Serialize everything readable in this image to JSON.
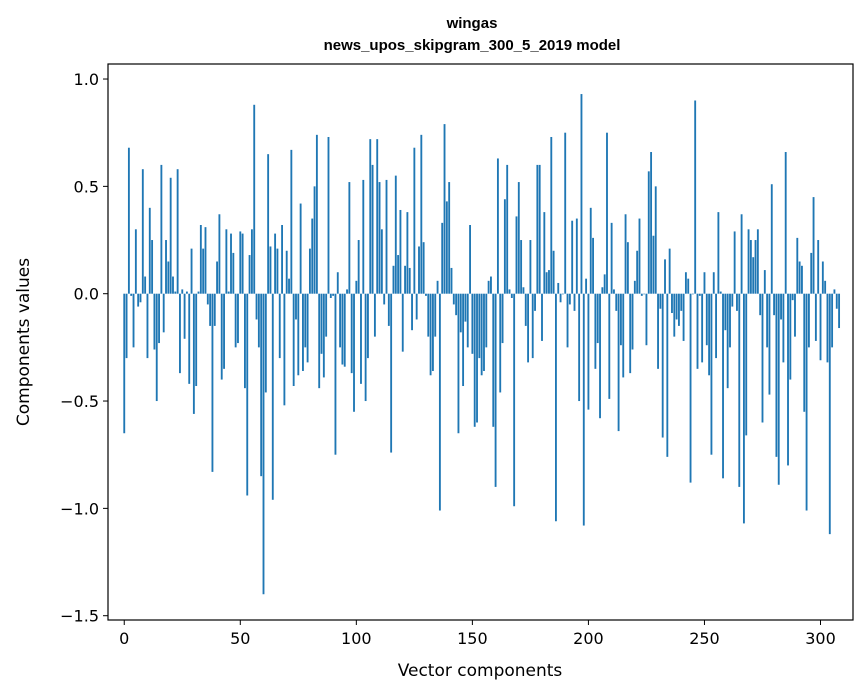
{
  "chart_data": {
    "type": "bar",
    "title": "wingas",
    "subtitle": "news_upos_skipgram_300_5_2019 model",
    "xlabel": "Vector components",
    "ylabel": "Components values",
    "xlim": [
      -7,
      314
    ],
    "ylim": [
      -1.52,
      1.07
    ],
    "x_ticks": [
      0,
      50,
      100,
      150,
      200,
      250,
      300
    ],
    "y_ticks": [
      1.0,
      0.5,
      0.0,
      -0.5,
      -1.0,
      -1.5
    ],
    "y_tick_labels": [
      "1.0",
      "0.5",
      "0.0",
      "−0.5",
      "−1.0",
      "−1.5"
    ],
    "bar_color": "#1f77b4",
    "values": [
      -0.65,
      -0.3,
      0.68,
      -0.01,
      -0.25,
      0.3,
      -0.06,
      -0.04,
      0.58,
      0.08,
      -0.3,
      0.4,
      0.25,
      -0.26,
      -0.5,
      -0.23,
      0.6,
      -0.18,
      0.25,
      0.15,
      0.54,
      0.08,
      0.01,
      0.58,
      -0.37,
      0.02,
      -0.21,
      0.01,
      -0.42,
      0.21,
      -0.56,
      -0.43,
      0.01,
      0.32,
      0.21,
      0.31,
      -0.05,
      -0.15,
      -0.83,
      -0.15,
      0.15,
      0.37,
      -0.4,
      -0.35,
      0.3,
      0.01,
      0.28,
      0.19,
      -0.25,
      -0.23,
      0.29,
      0.28,
      -0.44,
      -0.94,
      0.18,
      0.3,
      0.88,
      -0.12,
      -0.25,
      -0.85,
      -1.4,
      -0.46,
      0.65,
      0.22,
      -0.96,
      0.28,
      0.21,
      -0.3,
      0.32,
      -0.52,
      0.2,
      0.07,
      0.67,
      -0.43,
      -0.12,
      -0.38,
      0.42,
      -0.36,
      -0.25,
      -0.32,
      0.21,
      0.35,
      0.5,
      0.74,
      -0.44,
      -0.28,
      -0.39,
      -0.2,
      0.73,
      -0.02,
      -0.01,
      -0.75,
      0.1,
      -0.25,
      -0.33,
      -0.34,
      0.02,
      0.52,
      -0.37,
      -0.55,
      0.06,
      0.25,
      -0.42,
      0.53,
      -0.5,
      -0.3,
      0.72,
      0.6,
      -0.2,
      0.72,
      0.52,
      0.3,
      -0.05,
      0.53,
      -0.15,
      -0.74,
      0.13,
      0.55,
      0.18,
      0.39,
      -0.27,
      0.13,
      0.38,
      0.12,
      -0.17,
      0.68,
      -0.12,
      0.22,
      0.74,
      0.24,
      -0.01,
      -0.2,
      -0.38,
      -0.36,
      -0.2,
      0.06,
      -1.01,
      0.33,
      0.79,
      0.43,
      0.52,
      0.12,
      -0.05,
      -0.1,
      -0.65,
      -0.18,
      -0.43,
      -0.13,
      -0.25,
      0.32,
      -0.28,
      -0.62,
      -0.6,
      -0.3,
      -0.38,
      -0.36,
      -0.25,
      0.06,
      0.08,
      -0.62,
      -0.9,
      0.63,
      -0.46,
      -0.23,
      0.44,
      0.6,
      0.02,
      -0.02,
      -0.99,
      0.36,
      0.52,
      0.25,
      0.03,
      -0.15,
      -0.32,
      0.25,
      -0.3,
      -0.08,
      0.6,
      0.6,
      -0.22,
      0.38,
      0.1,
      0.11,
      0.73,
      0.2,
      -1.06,
      0.05,
      -0.04,
      0.0,
      0.75,
      -0.25,
      -0.05,
      0.34,
      -0.08,
      0.35,
      -0.5,
      0.93,
      -1.08,
      0.07,
      -0.54,
      0.4,
      0.26,
      -0.35,
      -0.23,
      -0.58,
      0.03,
      0.09,
      0.75,
      -0.49,
      0.33,
      0.02,
      -0.08,
      -0.64,
      -0.24,
      -0.39,
      0.37,
      0.24,
      -0.37,
      -0.26,
      0.06,
      0.2,
      0.35,
      -0.01,
      0.0,
      -0.24,
      0.57,
      0.66,
      0.27,
      0.5,
      -0.35,
      -0.07,
      -0.67,
      0.16,
      -0.76,
      0.21,
      -0.09,
      -0.2,
      -0.12,
      -0.15,
      -0.08,
      -0.22,
      0.1,
      0.07,
      -0.88,
      0.0,
      0.9,
      -0.35,
      -0.01,
      -0.32,
      0.1,
      -0.24,
      -0.38,
      -0.75,
      0.1,
      -0.3,
      0.38,
      0.01,
      -0.86,
      -0.17,
      -0.44,
      -0.25,
      -0.06,
      0.29,
      -0.08,
      -0.9,
      0.37,
      -1.07,
      -0.66,
      0.3,
      0.25,
      0.17,
      0.25,
      0.3,
      -0.1,
      -0.6,
      0.11,
      -0.25,
      -0.47,
      0.51,
      -0.1,
      -0.76,
      -0.89,
      -0.12,
      -0.32,
      0.66,
      -0.8,
      -0.4,
      -0.03,
      -0.2,
      0.26,
      0.15,
      0.13,
      -0.55,
      -1.01,
      -0.25,
      0.19,
      0.45,
      -0.22,
      0.25,
      -0.31,
      0.15,
      0.06,
      -0.32,
      -1.12,
      -0.25,
      0.02,
      -0.07,
      -0.16
    ]
  }
}
